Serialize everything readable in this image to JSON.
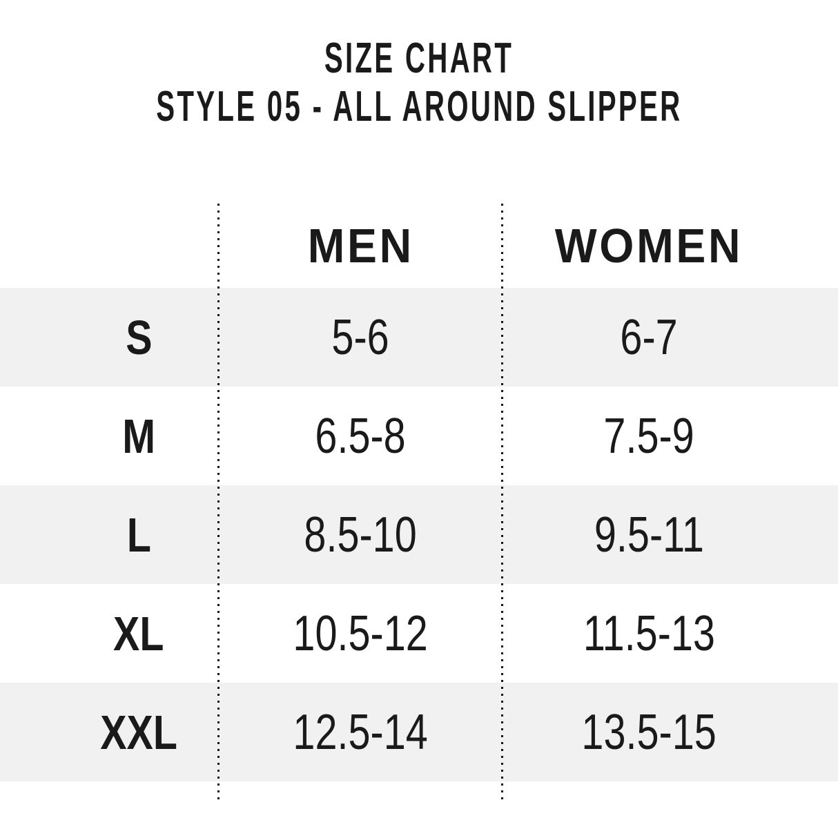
{
  "title": "SIZE CHART",
  "subtitle": "STYLE 05 - ALL AROUND SLIPPER",
  "colors": {
    "stripe": "#f1f1f2",
    "text": "#1a1a1a",
    "background": "#ffffff",
    "dotted_line": "#141414"
  },
  "chart_data": {
    "type": "table",
    "title": "SIZE CHART",
    "subtitle": "STYLE 05 - ALL AROUND SLIPPER",
    "columns": [
      "",
      "MEN",
      "WOMEN"
    ],
    "striped_rows": [
      "S",
      "L",
      "XXL"
    ],
    "rows": [
      {
        "size": "S",
        "men": "5-6",
        "women": "6-7"
      },
      {
        "size": "M",
        "men": "6.5-8",
        "women": "7.5-9"
      },
      {
        "size": "L",
        "men": "8.5-10",
        "women": "9.5-11"
      },
      {
        "size": "XL",
        "men": "10.5-12",
        "women": "11.5-13"
      },
      {
        "size": "XXL",
        "men": "12.5-14",
        "women": "13.5-15"
      }
    ]
  }
}
